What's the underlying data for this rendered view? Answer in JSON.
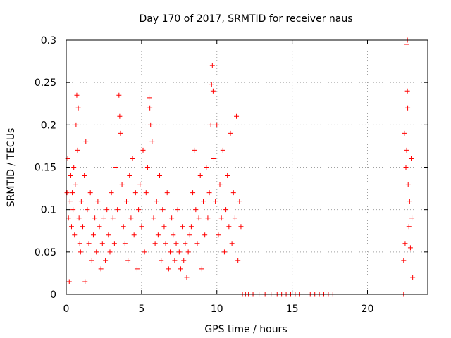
{
  "chart_data": {
    "type": "scatter",
    "title": "Day 170 of 2017, SRMTID for receiver naus",
    "xlabel": "GPS time / hours",
    "ylabel": "SRMTID / TECUs",
    "xlim": [
      0,
      24
    ],
    "ylim": [
      0,
      0.3
    ],
    "xticks": [
      0,
      5,
      10,
      15,
      20
    ],
    "xtick_labels": [
      "0",
      "5",
      "10",
      "15",
      "20"
    ],
    "yticks": [
      0,
      0.05,
      0.1,
      0.15,
      0.2,
      0.25,
      0.3
    ],
    "ytick_labels": [
      "0",
      "0.05",
      "0.1",
      "0.15",
      "0.2",
      "0.25",
      "0.3"
    ],
    "grid": true,
    "marker": "+",
    "color": "#ff0000",
    "series": [
      {
        "name": "naus",
        "points": [
          [
            0.05,
            0.12
          ],
          [
            0.1,
            0.16
          ],
          [
            0.15,
            0.09
          ],
          [
            0.2,
            0.015
          ],
          [
            0.25,
            0.11
          ],
          [
            0.3,
            0.14
          ],
          [
            0.35,
            0.08
          ],
          [
            0.4,
            0.12
          ],
          [
            0.45,
            0.1
          ],
          [
            0.5,
            0.15
          ],
          [
            0.55,
            0.07
          ],
          [
            0.6,
            0.13
          ],
          [
            0.65,
            0.2
          ],
          [
            0.7,
            0.235
          ],
          [
            0.75,
            0.17
          ],
          [
            0.8,
            0.22
          ],
          [
            0.85,
            0.09
          ],
          [
            0.9,
            0.06
          ],
          [
            0.95,
            0.05
          ],
          [
            1.0,
            0.11
          ],
          [
            1.1,
            0.08
          ],
          [
            1.2,
            0.14
          ],
          [
            1.25,
            0.015
          ],
          [
            1.3,
            0.18
          ],
          [
            1.4,
            0.1
          ],
          [
            1.5,
            0.06
          ],
          [
            1.6,
            0.12
          ],
          [
            1.7,
            0.04
          ],
          [
            1.8,
            0.07
          ],
          [
            1.9,
            0.09
          ],
          [
            2.0,
            0.05
          ],
          [
            2.1,
            0.11
          ],
          [
            2.2,
            0.08
          ],
          [
            2.3,
            0.03
          ],
          [
            2.4,
            0.06
          ],
          [
            2.5,
            0.09
          ],
          [
            2.6,
            0.04
          ],
          [
            2.7,
            0.1
          ],
          [
            2.8,
            0.07
          ],
          [
            2.9,
            0.05
          ],
          [
            3.0,
            0.12
          ],
          [
            3.1,
            0.09
          ],
          [
            3.2,
            0.06
          ],
          [
            3.3,
            0.15
          ],
          [
            3.4,
            0.1
          ],
          [
            3.5,
            0.235
          ],
          [
            3.55,
            0.21
          ],
          [
            3.6,
            0.19
          ],
          [
            3.7,
            0.13
          ],
          [
            3.8,
            0.08
          ],
          [
            3.9,
            0.06
          ],
          [
            4.0,
            0.11
          ],
          [
            4.1,
            0.04
          ],
          [
            4.2,
            0.14
          ],
          [
            4.3,
            0.09
          ],
          [
            4.4,
            0.16
          ],
          [
            4.5,
            0.07
          ],
          [
            4.6,
            0.12
          ],
          [
            4.7,
            0.03
          ],
          [
            4.8,
            0.1
          ],
          [
            4.9,
            0.13
          ],
          [
            5.0,
            0.08
          ],
          [
            5.1,
            0.17
          ],
          [
            5.2,
            0.05
          ],
          [
            5.3,
            0.12
          ],
          [
            5.4,
            0.15
          ],
          [
            5.5,
            0.232
          ],
          [
            5.55,
            0.22
          ],
          [
            5.6,
            0.2
          ],
          [
            5.7,
            0.18
          ],
          [
            5.8,
            0.09
          ],
          [
            5.9,
            0.06
          ],
          [
            6.0,
            0.11
          ],
          [
            6.1,
            0.07
          ],
          [
            6.2,
            0.14
          ],
          [
            6.3,
            0.04
          ],
          [
            6.4,
            0.1
          ],
          [
            6.5,
            0.08
          ],
          [
            6.6,
            0.06
          ],
          [
            6.7,
            0.12
          ],
          [
            6.8,
            0.03
          ],
          [
            6.9,
            0.05
          ],
          [
            7.0,
            0.09
          ],
          [
            7.1,
            0.07
          ],
          [
            7.2,
            0.04
          ],
          [
            7.3,
            0.06
          ],
          [
            7.4,
            0.1
          ],
          [
            7.5,
            0.05
          ],
          [
            7.6,
            0.03
          ],
          [
            7.7,
            0.08
          ],
          [
            7.8,
            0.04
          ],
          [
            7.9,
            0.06
          ],
          [
            8.0,
            0.02
          ],
          [
            8.1,
            0.05
          ],
          [
            8.2,
            0.07
          ],
          [
            8.3,
            0.08
          ],
          [
            8.4,
            0.12
          ],
          [
            8.5,
            0.17
          ],
          [
            8.6,
            0.1
          ],
          [
            8.7,
            0.06
          ],
          [
            8.8,
            0.09
          ],
          [
            8.9,
            0.14
          ],
          [
            9.0,
            0.03
          ],
          [
            9.1,
            0.11
          ],
          [
            9.2,
            0.07
          ],
          [
            9.3,
            0.15
          ],
          [
            9.4,
            0.09
          ],
          [
            9.5,
            0.12
          ],
          [
            9.6,
            0.2
          ],
          [
            9.65,
            0.248
          ],
          [
            9.7,
            0.27
          ],
          [
            9.75,
            0.24
          ],
          [
            9.8,
            0.16
          ],
          [
            9.9,
            0.11
          ],
          [
            10.0,
            0.2
          ],
          [
            10.1,
            0.07
          ],
          [
            10.2,
            0.13
          ],
          [
            10.3,
            0.09
          ],
          [
            10.4,
            0.17
          ],
          [
            10.5,
            0.05
          ],
          [
            10.6,
            0.1
          ],
          [
            10.7,
            0.14
          ],
          [
            10.8,
            0.08
          ],
          [
            10.9,
            0.19
          ],
          [
            11.0,
            0.06
          ],
          [
            11.1,
            0.12
          ],
          [
            11.2,
            0.09
          ],
          [
            11.3,
            0.21
          ],
          [
            11.4,
            0.04
          ],
          [
            11.5,
            0.11
          ],
          [
            11.6,
            0.08
          ],
          [
            11.7,
            0.0
          ],
          [
            11.9,
            0.0
          ],
          [
            12.1,
            0.0
          ],
          [
            12.4,
            0.0
          ],
          [
            12.8,
            0.0
          ],
          [
            13.2,
            0.0
          ],
          [
            13.6,
            0.0
          ],
          [
            14.0,
            0.0
          ],
          [
            14.3,
            0.0
          ],
          [
            14.6,
            0.0
          ],
          [
            14.9,
            0.0
          ],
          [
            15.2,
            0.0
          ],
          [
            15.5,
            0.0
          ],
          [
            16.2,
            0.0
          ],
          [
            16.5,
            0.0
          ],
          [
            16.8,
            0.0
          ],
          [
            17.1,
            0.0
          ],
          [
            17.4,
            0.0
          ],
          [
            17.7,
            0.0
          ],
          [
            22.4,
            0.0
          ],
          [
            22.4,
            0.04
          ],
          [
            22.45,
            0.19
          ],
          [
            22.5,
            0.06
          ],
          [
            22.55,
            0.15
          ],
          [
            22.6,
            0.17
          ],
          [
            22.62,
            0.295
          ],
          [
            22.65,
            0.3
          ],
          [
            22.65,
            0.24
          ],
          [
            22.67,
            0.22
          ],
          [
            22.7,
            0.13
          ],
          [
            22.75,
            0.08
          ],
          [
            22.8,
            0.11
          ],
          [
            22.85,
            0.055
          ],
          [
            22.9,
            0.16
          ],
          [
            22.95,
            0.09
          ],
          [
            23.0,
            0.02
          ]
        ]
      }
    ]
  }
}
